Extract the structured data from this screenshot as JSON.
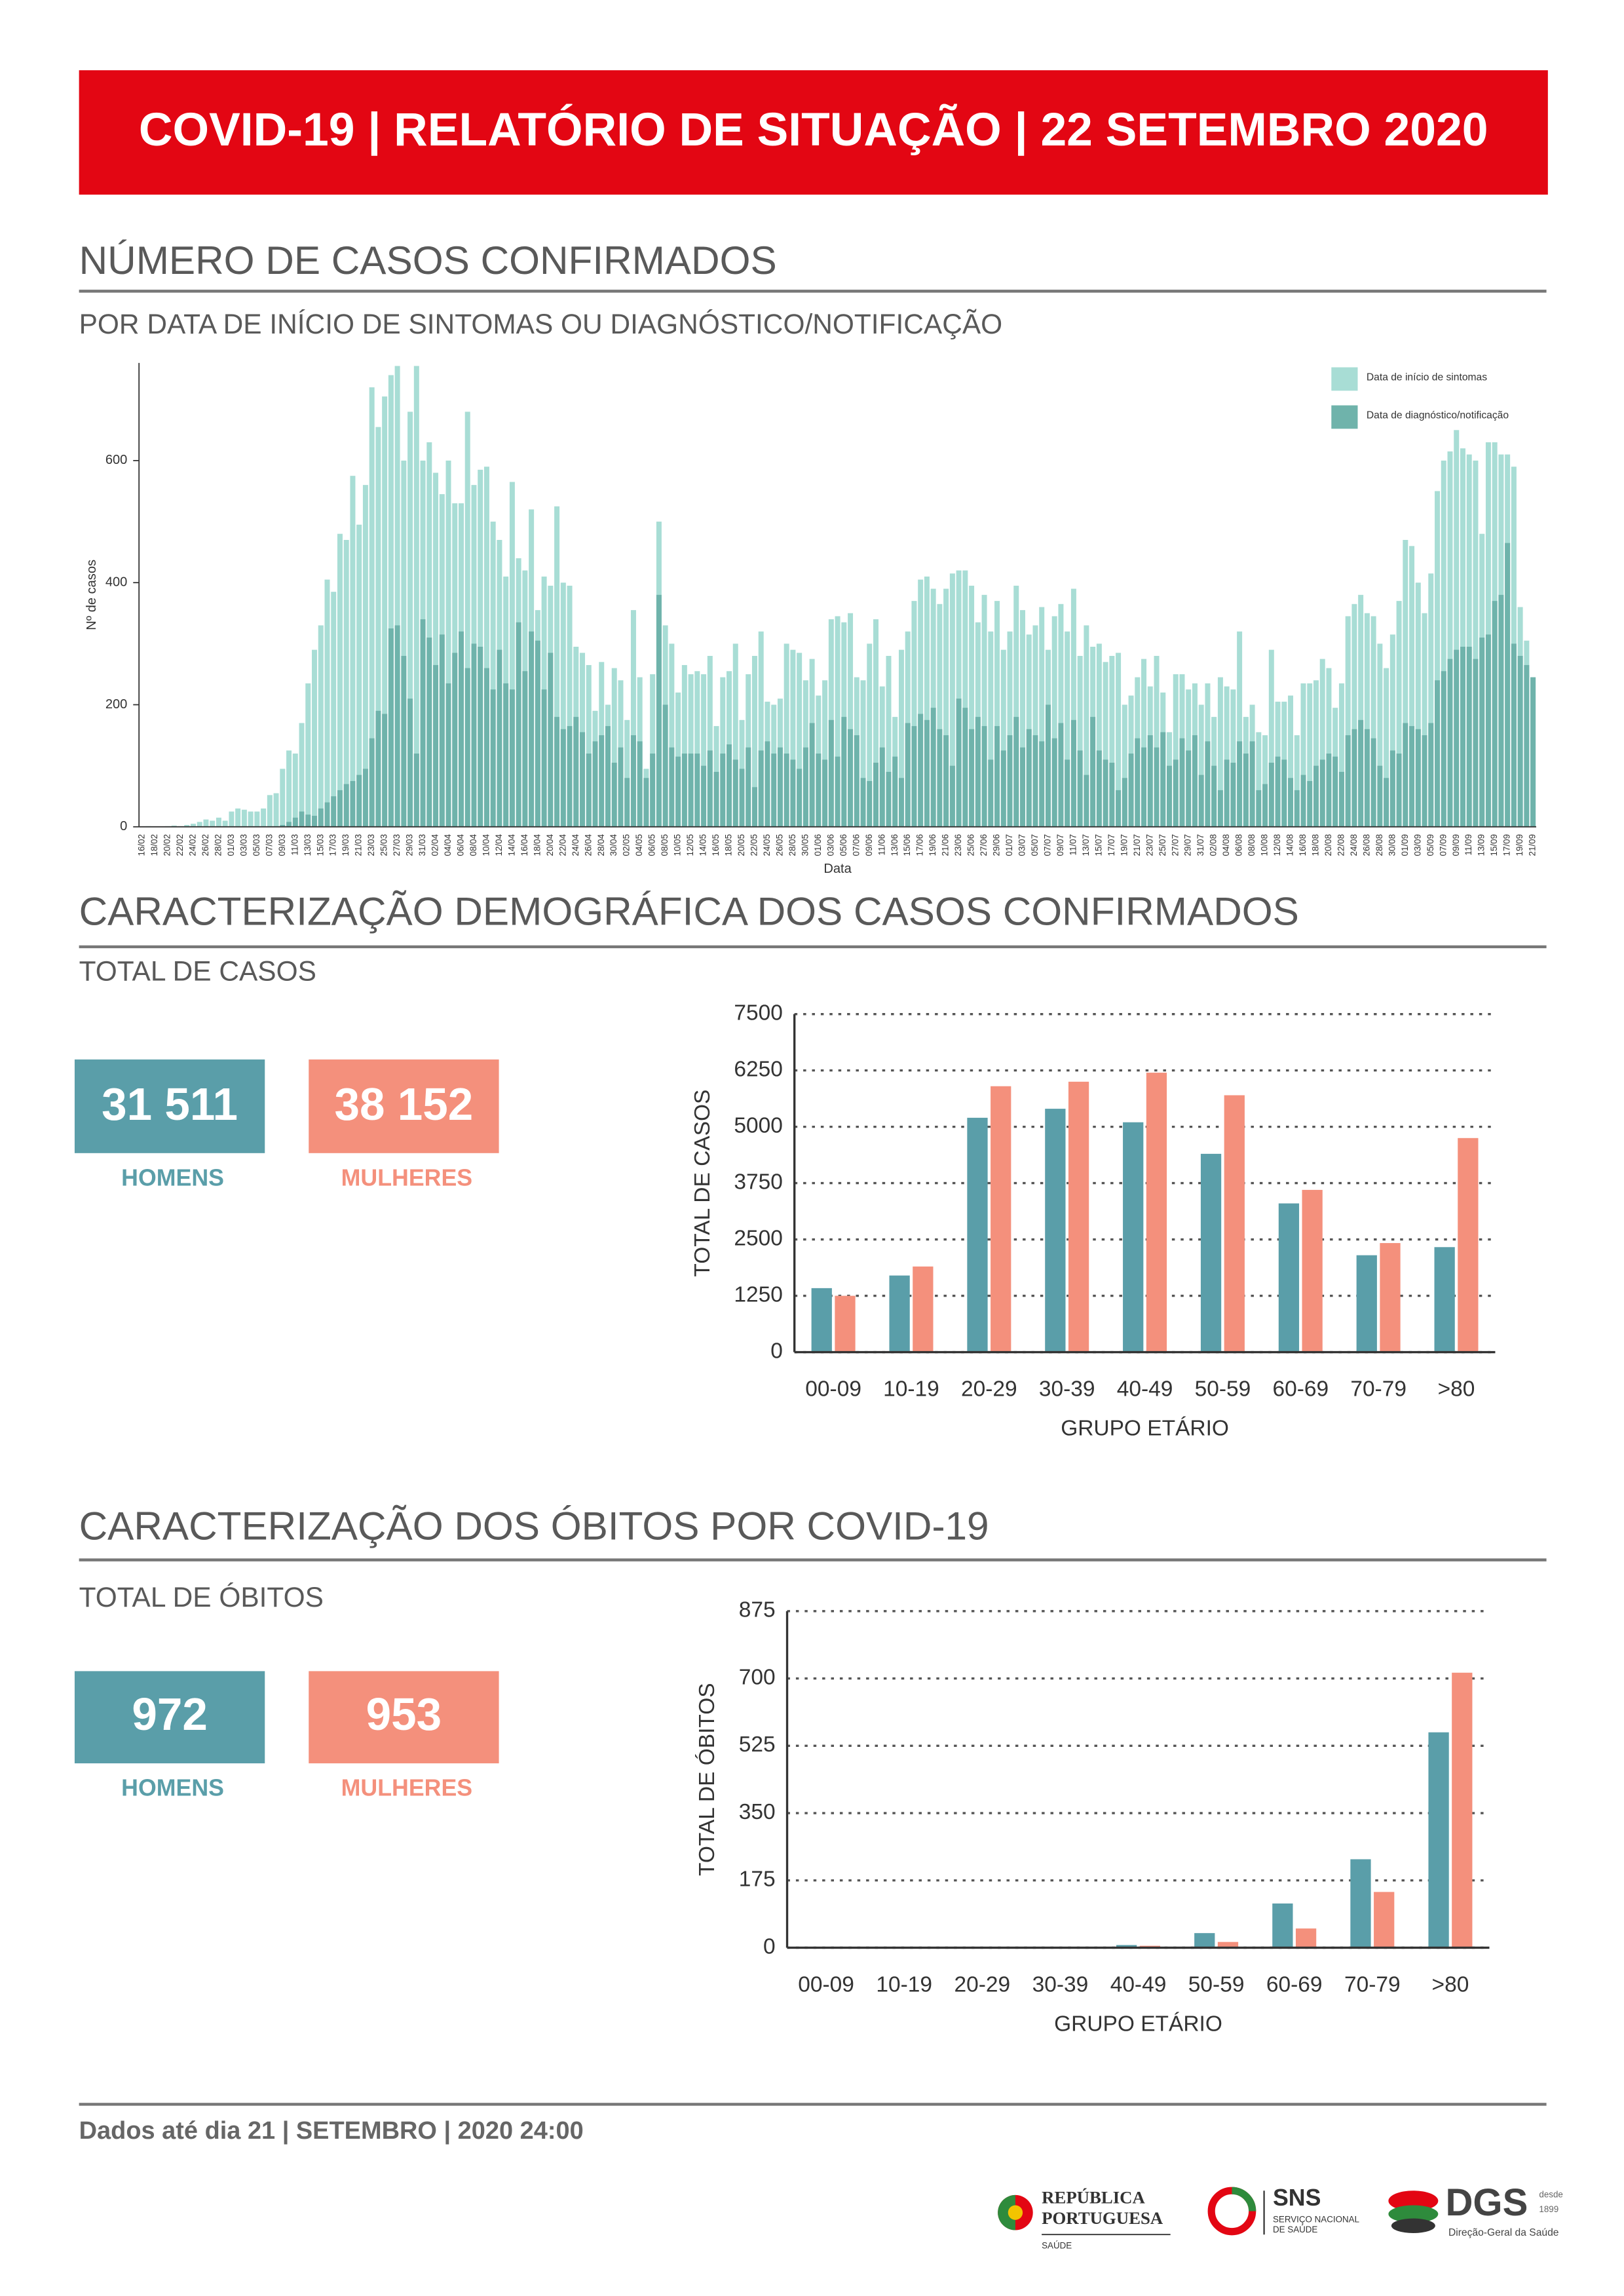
{
  "header": {
    "title": "COVID-19 | RELATÓRIO DE SITUAÇÃO | 22 SETEMBRO 2020"
  },
  "sections": [
    {
      "title": "NÚMERO DE CASOS CONFIRMADOS",
      "subtitle": "POR DATA DE INÍCIO DE SINTOMAS OU DIAGNÓSTICO/NOTIFICAÇÃO"
    },
    {
      "title": "CARACTERIZAÇÃO DEMOGRÁFICA DOS CASOS CONFIRMADOS",
      "subtitle": "TOTAL DE CASOS"
    },
    {
      "title": "CARACTERIZAÇÃO DOS ÓBITOS POR COVID-19",
      "subtitle": "TOTAL DE ÓBITOS"
    }
  ],
  "cases_totals": {
    "men": {
      "value": "31 511",
      "label": "HOMENS"
    },
    "women": {
      "value": "38 152",
      "label": "MULHERES"
    }
  },
  "deaths_totals": {
    "men": {
      "value": "972",
      "label": "HOMENS"
    },
    "women": {
      "value": "953",
      "label": "MULHERES"
    }
  },
  "chart_data": [
    {
      "type": "bar",
      "bar_mode": "overlay",
      "y_label": "Nº de casos",
      "x_label": "Data",
      "legend": "top-right",
      "grid": false,
      "ylim": [
        0,
        760
      ],
      "yticks": [
        0,
        200,
        400,
        600
      ],
      "categories": [
        "16/02",
        null,
        "18/02",
        null,
        "20/02",
        null,
        "22/02",
        null,
        "24/02",
        null,
        "26/02",
        null,
        "28/02",
        null,
        "01/03",
        null,
        "03/03",
        null,
        "05/03",
        null,
        "07/03",
        null,
        "09/03",
        null,
        "11/03",
        null,
        "13/03",
        null,
        "15/03",
        null,
        "17/03",
        null,
        "19/03",
        null,
        "21/03",
        null,
        "23/03",
        null,
        "25/03",
        null,
        "27/03",
        null,
        "29/03",
        null,
        "31/03",
        null,
        "02/04",
        null,
        "04/04",
        null,
        "06/04",
        null,
        "08/04",
        null,
        "10/04",
        null,
        "12/04",
        null,
        "14/04",
        null,
        "16/04",
        null,
        "18/04",
        null,
        "20/04",
        null,
        "22/04",
        null,
        "24/04",
        null,
        "26/04",
        null,
        "28/04",
        null,
        "30/04",
        null,
        "02/05",
        null,
        "04/05",
        null,
        "06/05",
        null,
        "08/05",
        null,
        "10/05",
        null,
        "12/05",
        null,
        "14/05",
        null,
        "16/05",
        null,
        "18/05",
        null,
        "20/05",
        null,
        "22/05",
        null,
        "24/05",
        null,
        "26/05",
        null,
        "28/05",
        null,
        "30/05",
        null,
        "01/06",
        null,
        "03/06",
        null,
        "05/06",
        null,
        "07/06",
        null,
        "09/06",
        null,
        "11/06",
        null,
        "13/06",
        null,
        "15/06",
        null,
        "17/06",
        null,
        "19/06",
        null,
        "21/06",
        null,
        "23/06",
        null,
        "25/06",
        null,
        "27/06",
        null,
        "29/06",
        null,
        "01/07",
        null,
        "03/07",
        null,
        "05/07",
        null,
        "07/07",
        null,
        "09/07",
        null,
        "11/07",
        null,
        "13/07",
        null,
        "15/07",
        null,
        "17/07",
        null,
        "19/07",
        null,
        "21/07",
        null,
        "23/07",
        null,
        "25/07",
        null,
        "27/07",
        null,
        "29/07",
        null,
        "31/07",
        null,
        "02/08",
        null,
        "04/08",
        null,
        "06/08",
        null,
        "08/08",
        null,
        "10/08",
        null,
        "12/08",
        null,
        "14/08",
        null,
        "16/08",
        null,
        "18/08",
        null,
        "20/08",
        null,
        "22/08",
        null,
        "24/08",
        null,
        "26/08",
        null,
        "28/08",
        null,
        "30/08",
        null,
        "01/09",
        null,
        "03/09",
        null,
        "05/09",
        null,
        "07/09",
        null,
        "09/09",
        null,
        "11/09",
        null,
        "13/09",
        null,
        "15/09",
        null,
        "17/09",
        null,
        "19/09",
        null,
        "21/09"
      ],
      "series": [
        {
          "name": "Data de início de sintomas",
          "color": "#a8ddd5",
          "values": [
            0,
            1,
            0,
            0,
            1,
            2,
            1,
            3,
            5,
            8,
            12,
            10,
            15,
            10,
            25,
            30,
            28,
            25,
            25,
            30,
            52,
            55,
            95,
            125,
            120,
            170,
            235,
            290,
            330,
            405,
            385,
            480,
            470,
            575,
            495,
            560,
            720,
            655,
            705,
            740,
            755,
            600,
            680,
            755,
            600,
            630,
            580,
            545,
            600,
            530,
            530,
            680,
            560,
            585,
            590,
            500,
            470,
            410,
            565,
            440,
            420,
            520,
            355,
            410,
            395,
            525,
            400,
            395,
            295,
            285,
            265,
            190,
            270,
            200,
            260,
            240,
            175,
            355,
            245,
            95,
            250,
            500,
            330,
            300,
            220,
            265,
            250,
            255,
            250,
            280,
            165,
            245,
            255,
            300,
            175,
            250,
            280,
            320,
            205,
            200,
            210,
            300,
            290,
            285,
            240,
            275,
            215,
            240,
            340,
            345,
            335,
            350,
            245,
            240,
            300,
            340,
            230,
            280,
            180,
            290,
            320,
            370,
            405,
            410,
            390,
            365,
            390,
            415,
            420,
            420,
            395,
            335,
            380,
            320,
            370,
            290,
            320,
            395,
            355,
            315,
            330,
            360,
            290,
            345,
            365,
            320,
            390,
            280,
            330,
            295,
            300,
            270,
            280,
            285,
            200,
            215,
            245,
            275,
            230,
            280,
            220,
            155,
            250,
            250,
            225,
            235,
            200,
            235,
            180,
            245,
            230,
            225,
            320,
            180,
            200,
            155,
            150,
            290,
            205,
            205,
            215,
            150,
            235,
            235,
            240,
            275,
            260,
            195,
            235,
            345,
            365,
            380,
            350,
            345,
            300,
            260,
            315,
            370,
            470,
            460,
            400,
            350,
            415,
            550,
            600,
            615,
            650,
            620,
            610,
            600,
            480,
            630,
            630,
            610,
            610,
            590,
            360,
            305,
            245
          ]
        },
        {
          "name": "Data de diagnóstico/notificação",
          "color": "#6fb3ab",
          "values": [
            0,
            0,
            0,
            0,
            0,
            0,
            0,
            0,
            0,
            0,
            0,
            0,
            0,
            0,
            0,
            0,
            0,
            0,
            0,
            0,
            0,
            0,
            3,
            8,
            15,
            25,
            20,
            18,
            30,
            40,
            50,
            60,
            70,
            75,
            85,
            95,
            145,
            190,
            185,
            325,
            330,
            280,
            210,
            120,
            340,
            310,
            265,
            315,
            235,
            285,
            320,
            260,
            300,
            295,
            260,
            225,
            290,
            235,
            225,
            335,
            255,
            320,
            305,
            225,
            285,
            180,
            160,
            165,
            180,
            155,
            120,
            140,
            150,
            165,
            105,
            130,
            80,
            150,
            140,
            80,
            120,
            380,
            200,
            130,
            115,
            120,
            120,
            120,
            100,
            125,
            90,
            120,
            135,
            110,
            95,
            130,
            65,
            125,
            140,
            120,
            130,
            120,
            110,
            95,
            130,
            170,
            120,
            110,
            175,
            115,
            180,
            160,
            150,
            80,
            75,
            105,
            130,
            90,
            115,
            80,
            170,
            165,
            185,
            175,
            195,
            160,
            150,
            100,
            210,
            195,
            160,
            180,
            165,
            110,
            165,
            125,
            150,
            180,
            130,
            160,
            150,
            140,
            200,
            145,
            170,
            110,
            175,
            125,
            85,
            180,
            125,
            110,
            105,
            60,
            80,
            120,
            145,
            130,
            150,
            130,
            155,
            100,
            110,
            145,
            125,
            150,
            85,
            140,
            100,
            60,
            110,
            105,
            140,
            120,
            140,
            60,
            70,
            105,
            115,
            110,
            80,
            60,
            85,
            75,
            100,
            110,
            120,
            115,
            90,
            150,
            160,
            175,
            160,
            145,
            100,
            80,
            125,
            120,
            170,
            165,
            160,
            150,
            170,
            240,
            255,
            275,
            290,
            295,
            295,
            275,
            310,
            315,
            370,
            380,
            465,
            300,
            280,
            265,
            245
          ]
        }
      ]
    },
    {
      "type": "bar",
      "bar_mode": "grouped",
      "y_label": "TOTAL DE CASOS",
      "x_label": "GRUPO ETÁRIO",
      "grid": true,
      "ylim": [
        0,
        7500
      ],
      "yticks": [
        0,
        1250,
        2500,
        3750,
        5000,
        6250,
        7500
      ],
      "categories": [
        "00-09",
        "10-19",
        "20-29",
        "30-39",
        "40-49",
        "50-59",
        "60-69",
        "70-79",
        ">80"
      ],
      "series": [
        {
          "color": "#5a9ea9",
          "values": [
            1420,
            1700,
            5200,
            5400,
            5100,
            4400,
            3300,
            2150,
            2330
          ]
        },
        {
          "color": "#f4907c",
          "values": [
            1250,
            1900,
            5900,
            6000,
            6200,
            5700,
            3600,
            2420,
            4750
          ]
        }
      ]
    },
    {
      "type": "bar",
      "bar_mode": "grouped",
      "y_label": "TOTAL DE ÓBITOS",
      "x_label": "GRUPO ETÁRIO",
      "grid": true,
      "ylim": [
        0,
        875
      ],
      "yticks": [
        0,
        175,
        350,
        525,
        700,
        875
      ],
      "categories": [
        "00-09",
        "10-19",
        "20-29",
        "30-39",
        "40-49",
        "50-59",
        "60-69",
        "70-79",
        ">80"
      ],
      "series": [
        {
          "color": "#5a9ea9",
          "values": [
            0,
            0,
            1,
            2,
            7,
            38,
            115,
            230,
            560
          ]
        },
        {
          "color": "#f4907c",
          "values": [
            0,
            0,
            0,
            1,
            5,
            15,
            50,
            145,
            715
          ]
        }
      ]
    }
  ],
  "footer": "Dados até dia 21 | SETEMBRO | 2020 24:00",
  "logos": {
    "republica": [
      "REPÚBLICA",
      "PORTUGUESA",
      "SAÚDE"
    ],
    "sns": [
      "SNS",
      "SERVIÇO NACIONAL",
      "DE SAÚDE"
    ],
    "dgs": [
      "DGS",
      "desde",
      "1899",
      "Direção-Geral da Saúde"
    ]
  }
}
